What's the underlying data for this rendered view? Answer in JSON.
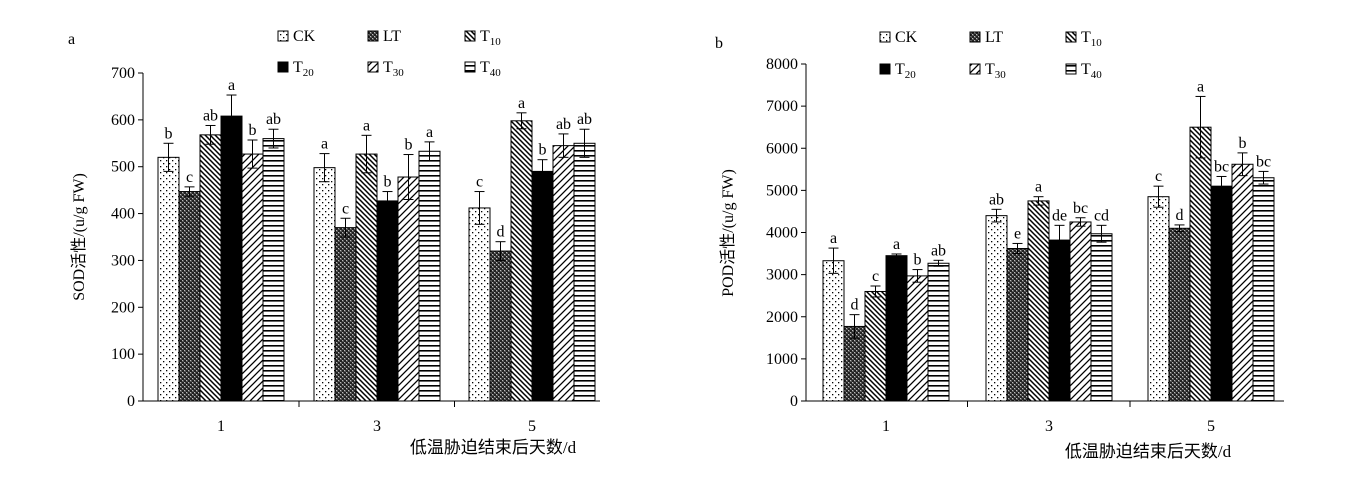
{
  "chart_data": [
    {
      "type": "bar",
      "panel_label": "a",
      "ylabel": "SOD活性/(u/g FW)",
      "xlabel": "低温胁迫结束后天数/d",
      "categories": [
        "1",
        "3",
        "5"
      ],
      "ylim": [
        0,
        700
      ],
      "yticks": [
        0,
        100,
        200,
        300,
        400,
        500,
        600,
        700
      ],
      "yticks_text": [
        "0",
        "100",
        "200",
        "300",
        "400",
        "500",
        "600",
        "700"
      ],
      "grid": false,
      "legend_position": "top",
      "series": [
        {
          "name": "CK",
          "legend_base": "CK",
          "legend_sub": "",
          "pattern": "dots",
          "values": [
            520,
            498,
            412
          ],
          "errors": [
            30,
            30,
            35
          ],
          "letters": [
            "b",
            "a",
            "c"
          ]
        },
        {
          "name": "LT",
          "legend_base": "LT",
          "legend_sub": "",
          "pattern": "crosshatch",
          "values": [
            447,
            370,
            320
          ],
          "errors": [
            10,
            20,
            20
          ],
          "letters": [
            "c",
            "c",
            "d"
          ]
        },
        {
          "name": "T10",
          "legend_base": "T",
          "legend_sub": "10",
          "pattern": "diag-back",
          "values": [
            568,
            527,
            598
          ],
          "errors": [
            20,
            40,
            17
          ],
          "letters": [
            "ab",
            "a",
            "a"
          ]
        },
        {
          "name": "T20",
          "legend_base": "T",
          "legend_sub": "20",
          "pattern": "solid",
          "values": [
            608,
            427,
            490
          ],
          "errors": [
            45,
            20,
            25
          ],
          "letters": [
            "a",
            "b",
            "b"
          ]
        },
        {
          "name": "T30",
          "legend_base": "T",
          "legend_sub": "30",
          "pattern": "diag-fwd",
          "values": [
            527,
            478,
            545
          ],
          "errors": [
            30,
            48,
            25
          ],
          "letters": [
            "b",
            "b",
            "ab"
          ]
        },
        {
          "name": "T40",
          "legend_base": "T",
          "legend_sub": "40",
          "pattern": "hlines",
          "values": [
            560,
            533,
            550
          ],
          "errors": [
            20,
            20,
            30
          ],
          "letters": [
            "ab",
            "a",
            "ab"
          ]
        }
      ]
    },
    {
      "type": "bar",
      "panel_label": "b",
      "ylabel": "POD活性/(u/g FW)",
      "xlabel": "低温胁迫结束后天数/d",
      "categories": [
        "1",
        "3",
        "5"
      ],
      "ylim": [
        0,
        8000
      ],
      "yticks": [
        0,
        1000,
        2000,
        3000,
        4000,
        5000,
        6000,
        7000,
        8000
      ],
      "yticks_text": [
        "0",
        "1000",
        "2000",
        "3000",
        "4000",
        "5000",
        "6000",
        "7000",
        "8000"
      ],
      "grid": false,
      "legend_position": "top",
      "series": [
        {
          "name": "CK",
          "legend_base": "CK",
          "legend_sub": "",
          "pattern": "dots",
          "values": [
            3330,
            4400,
            4850
          ],
          "errors": [
            300,
            150,
            250
          ],
          "letters": [
            "a",
            "ab",
            "c"
          ]
        },
        {
          "name": "LT",
          "legend_base": "LT",
          "legend_sub": "",
          "pattern": "crosshatch",
          "values": [
            1770,
            3620,
            4100
          ],
          "errors": [
            280,
            120,
            80
          ],
          "letters": [
            "d",
            "e",
            "d"
          ]
        },
        {
          "name": "T10",
          "legend_base": "T",
          "legend_sub": "10",
          "pattern": "diag-back",
          "values": [
            2600,
            4750,
            6500
          ],
          "errors": [
            130,
            100,
            730
          ],
          "letters": [
            "c",
            "a",
            "a"
          ]
        },
        {
          "name": "T20",
          "legend_base": "T",
          "legend_sub": "20",
          "pattern": "solid",
          "values": [
            3450,
            3820,
            5100
          ],
          "errors": [
            40,
            350,
            230
          ],
          "letters": [
            "a",
            "de",
            "bc"
          ]
        },
        {
          "name": "T30",
          "legend_base": "T",
          "legend_sub": "30",
          "pattern": "diag-fwd",
          "values": [
            2970,
            4250,
            5620
          ],
          "errors": [
            150,
            100,
            270
          ],
          "letters": [
            "b",
            "bc",
            "b"
          ]
        },
        {
          "name": "T40",
          "legend_base": "T",
          "legend_sub": "40",
          "pattern": "hlines",
          "values": [
            3270,
            3970,
            5300
          ],
          "errors": [
            70,
            200,
            150
          ],
          "letters": [
            "ab",
            "cd",
            "bc"
          ]
        }
      ]
    }
  ]
}
